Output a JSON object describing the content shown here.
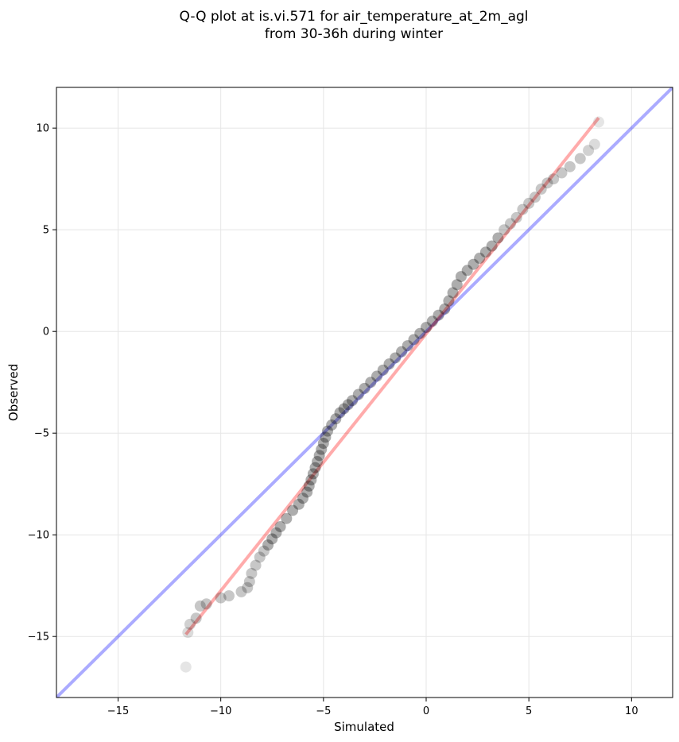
{
  "chart_data": {
    "type": "scatter",
    "title": [
      "Q-Q plot at is.vi.571 for air_temperature_at_2m_agl",
      "from 30-36h during winter"
    ],
    "xlabel": "Simulated",
    "ylabel": "Observed",
    "xlim": [
      -18,
      12
    ],
    "ylim": [
      -18,
      12
    ],
    "xticks": [
      -15,
      -10,
      -5,
      0,
      5,
      10
    ],
    "yticks": [
      -15,
      -10,
      -5,
      0,
      5,
      10
    ],
    "xtick_labels": [
      "−15",
      "−10",
      "−5",
      "0",
      "5",
      "10"
    ],
    "ytick_labels": [
      "−15",
      "−10",
      "−5",
      "0",
      "5",
      "10"
    ],
    "grid": true,
    "colors": {
      "points": "#000000",
      "identity_line": "#0000ff",
      "fit_line": "#ff0000",
      "grid": "#e6e6e6"
    },
    "identity_line": {
      "x": [
        -18,
        12
      ],
      "y": [
        -18,
        12
      ]
    },
    "fit_line": {
      "x": [
        -11.7,
        8.4
      ],
      "y": [
        -14.9,
        10.5
      ]
    },
    "series": [
      {
        "x": [
          -11.7,
          -11.6,
          -11.5,
          -11.2,
          -11.0,
          -10.7,
          -10.0,
          -9.6,
          -9.0,
          -8.7,
          -8.6,
          -8.5,
          -8.3,
          -8.1,
          -7.9,
          -7.7,
          -7.5,
          -7.3,
          -7.1,
          -6.8,
          -6.5,
          -6.2,
          -6.0,
          -5.8,
          -5.7,
          -5.6,
          -5.5,
          -5.4,
          -5.3,
          -5.2,
          -5.1,
          -5.0,
          -4.9,
          -4.8,
          -4.6,
          -4.4,
          -4.2,
          -4.0,
          -3.8,
          -3.6,
          -3.3,
          -3.0,
          -2.7,
          -2.4,
          -2.1,
          -1.8,
          -1.5,
          -1.2,
          -0.9,
          -0.6,
          -0.3,
          0.0,
          0.3,
          0.6,
          0.9,
          1.1,
          1.3,
          1.5,
          1.7,
          2.0,
          2.3,
          2.6,
          2.9,
          3.2,
          3.5,
          3.8,
          4.1,
          4.4,
          4.7,
          5.0,
          5.3,
          5.6,
          5.9,
          6.2,
          6.6,
          7.0,
          7.5,
          7.9,
          8.2,
          8.4
        ],
        "y": [
          -16.5,
          -14.8,
          -14.4,
          -14.1,
          -13.5,
          -13.4,
          -13.1,
          -13.0,
          -12.8,
          -12.6,
          -12.3,
          -11.9,
          -11.5,
          -11.1,
          -10.8,
          -10.5,
          -10.2,
          -9.9,
          -9.6,
          -9.2,
          -8.8,
          -8.5,
          -8.2,
          -7.9,
          -7.6,
          -7.3,
          -7.0,
          -6.7,
          -6.4,
          -6.1,
          -5.8,
          -5.5,
          -5.2,
          -4.9,
          -4.6,
          -4.3,
          -4.0,
          -3.8,
          -3.6,
          -3.4,
          -3.1,
          -2.8,
          -2.5,
          -2.2,
          -1.9,
          -1.6,
          -1.3,
          -1.0,
          -0.7,
          -0.4,
          -0.1,
          0.2,
          0.5,
          0.8,
          1.1,
          1.5,
          1.9,
          2.3,
          2.7,
          3.0,
          3.3,
          3.6,
          3.9,
          4.2,
          4.6,
          5.0,
          5.3,
          5.6,
          6.0,
          6.3,
          6.6,
          7.0,
          7.3,
          7.5,
          7.8,
          8.1,
          8.5,
          8.9,
          9.2,
          10.3
        ]
      }
    ]
  }
}
